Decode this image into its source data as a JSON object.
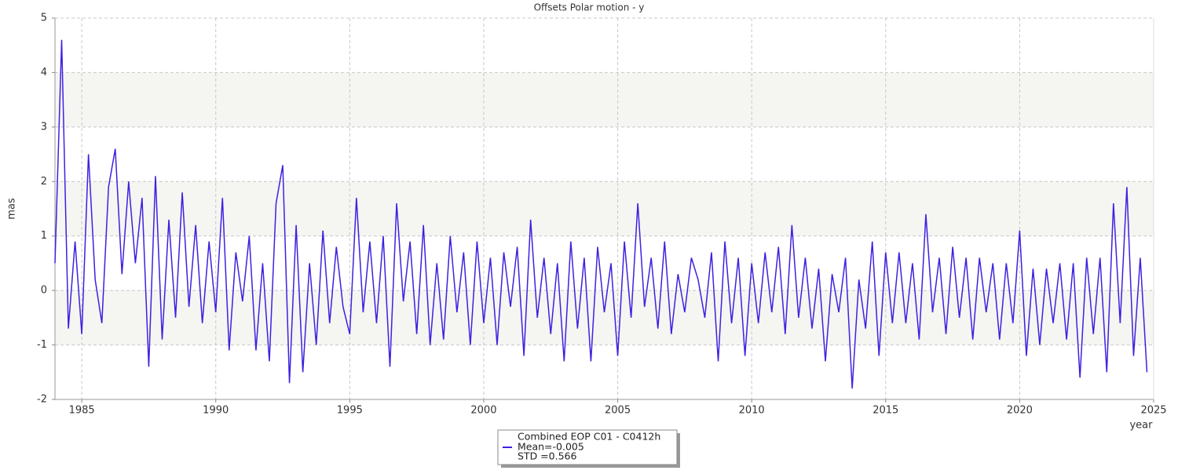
{
  "chart_data": {
    "type": "line",
    "title": "Offsets Polar motion - y",
    "y_label": "mas",
    "x_label": "year",
    "x": [
      1984.0,
      1984.25,
      1984.5,
      1984.75,
      1985.0,
      1985.25,
      1985.5,
      1985.75,
      1986.0,
      1986.25,
      1986.5,
      1986.75,
      1987.0,
      1987.25,
      1987.5,
      1987.75,
      1988.0,
      1988.25,
      1988.5,
      1988.75,
      1989.0,
      1989.25,
      1989.5,
      1989.75,
      1990.0,
      1990.25,
      1990.5,
      1990.75,
      1991.0,
      1991.25,
      1991.5,
      1991.75,
      1992.0,
      1992.25,
      1992.5,
      1992.75,
      1993.0,
      1993.25,
      1993.5,
      1993.75,
      1994.0,
      1994.25,
      1994.5,
      1994.75,
      1995.0,
      1995.25,
      1995.5,
      1995.75,
      1996.0,
      1996.25,
      1996.5,
      1996.75,
      1997.0,
      1997.25,
      1997.5,
      1997.75,
      1998.0,
      1998.25,
      1998.5,
      1998.75,
      1999.0,
      1999.25,
      1999.5,
      1999.75,
      2000.0,
      2000.25,
      2000.5,
      2000.75,
      2001.0,
      2001.25,
      2001.5,
      2001.75,
      2002.0,
      2002.25,
      2002.5,
      2002.75,
      2003.0,
      2003.25,
      2003.5,
      2003.75,
      2004.0,
      2004.25,
      2004.5,
      2004.75,
      2005.0,
      2005.25,
      2005.5,
      2005.75,
      2006.0,
      2006.25,
      2006.5,
      2006.75,
      2007.0,
      2007.25,
      2007.5,
      2007.75,
      2008.0,
      2008.25,
      2008.5,
      2008.75,
      2009.0,
      2009.25,
      2009.5,
      2009.75,
      2010.0,
      2010.25,
      2010.5,
      2010.75,
      2011.0,
      2011.25,
      2011.5,
      2011.75,
      2012.0,
      2012.25,
      2012.5,
      2012.75,
      2013.0,
      2013.25,
      2013.5,
      2013.75,
      2014.0,
      2014.25,
      2014.5,
      2014.75,
      2015.0,
      2015.25,
      2015.5,
      2015.75,
      2016.0,
      2016.25,
      2016.5,
      2016.75,
      2017.0,
      2017.25,
      2017.5,
      2017.75,
      2018.0,
      2018.25,
      2018.5,
      2018.75,
      2019.0,
      2019.25,
      2019.5,
      2019.75,
      2020.0,
      2020.25,
      2020.5,
      2020.75,
      2021.0,
      2021.25,
      2021.5,
      2021.75,
      2022.0,
      2022.25,
      2022.5,
      2022.75,
      2023.0,
      2023.25,
      2023.5,
      2023.75,
      2024.0,
      2024.25,
      2024.5,
      2024.75
    ],
    "series": [
      {
        "name": "Combined EOP C01 - C0412h",
        "color": "#3b22e0",
        "values": [
          0.5,
          4.6,
          -0.7,
          0.9,
          -0.8,
          2.5,
          0.2,
          -0.6,
          1.9,
          2.6,
          0.3,
          2.0,
          0.5,
          1.7,
          -1.4,
          2.1,
          -0.9,
          1.3,
          -0.5,
          1.8,
          -0.3,
          1.2,
          -0.6,
          0.9,
          -0.4,
          1.7,
          -1.1,
          0.7,
          -0.2,
          1.0,
          -1.1,
          0.5,
          -1.3,
          1.6,
          2.3,
          -1.7,
          1.2,
          -1.5,
          0.5,
          -1.0,
          1.1,
          -0.6,
          0.8,
          -0.3,
          -0.8,
          1.7,
          -0.4,
          0.9,
          -0.6,
          1.0,
          -1.4,
          1.6,
          -0.2,
          0.9,
          -0.8,
          1.2,
          -1.0,
          0.5,
          -0.9,
          1.0,
          -0.4,
          0.7,
          -1.0,
          0.9,
          -0.6,
          0.6,
          -1.0,
          0.7,
          -0.3,
          0.8,
          -1.2,
          1.3,
          -0.5,
          0.6,
          -0.8,
          0.5,
          -1.3,
          0.9,
          -0.7,
          0.6,
          -1.3,
          0.8,
          -0.4,
          0.5,
          -1.2,
          0.9,
          -0.5,
          1.6,
          -0.3,
          0.6,
          -0.7,
          0.9,
          -0.8,
          0.3,
          -0.4,
          0.6,
          0.2,
          -0.5,
          0.7,
          -1.3,
          0.9,
          -0.6,
          0.6,
          -1.2,
          0.5,
          -0.6,
          0.7,
          -0.4,
          0.8,
          -0.8,
          1.2,
          -0.5,
          0.6,
          -0.7,
          0.4,
          -1.3,
          0.3,
          -0.4,
          0.6,
          -1.8,
          0.2,
          -0.7,
          0.9,
          -1.2,
          0.7,
          -0.6,
          0.7,
          -0.6,
          0.5,
          -0.9,
          1.4,
          -0.4,
          0.6,
          -0.8,
          0.8,
          -0.5,
          0.6,
          -0.9,
          0.6,
          -0.4,
          0.5,
          -0.9,
          0.5,
          -0.6,
          1.1,
          -1.2,
          0.4,
          -1.0,
          0.4,
          -0.6,
          0.5,
          -0.9,
          0.5,
          -1.6,
          0.6,
          -0.8,
          0.6,
          -1.5,
          1.6,
          -0.6,
          1.9,
          -1.2,
          0.6,
          -1.5
        ]
      }
    ],
    "legend_notes": [
      "Mean=-0.005",
      "STD =0.566"
    ],
    "xlim": [
      1984,
      2025
    ],
    "xticks": [
      1985,
      1990,
      1995,
      2000,
      2005,
      2010,
      2015,
      2020,
      2025
    ],
    "ylim": [
      -2,
      5
    ],
    "yticks": [
      -2,
      -1,
      0,
      1,
      2,
      3,
      4,
      5
    ],
    "grid": true,
    "bands": true
  }
}
